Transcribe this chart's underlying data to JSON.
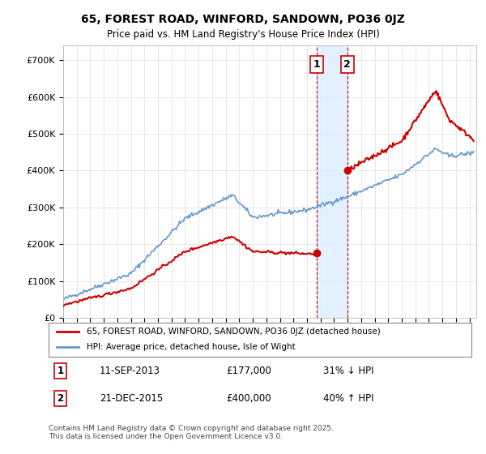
{
  "title": "65, FOREST ROAD, WINFORD, SANDOWN, PO36 0JZ",
  "subtitle": "Price paid vs. HM Land Registry's House Price Index (HPI)",
  "ylabel_ticks": [
    "£0",
    "£100K",
    "£200K",
    "£300K",
    "£400K",
    "£500K",
    "£600K",
    "£700K"
  ],
  "ytick_vals": [
    0,
    100000,
    200000,
    300000,
    400000,
    500000,
    600000,
    700000
  ],
  "ylim": [
    0,
    740000
  ],
  "xlim_start": 1995.0,
  "xlim_end": 2025.5,
  "sale1_date": 2013.7,
  "sale1_price": 177000,
  "sale2_date": 2015.97,
  "sale2_price": 400000,
  "hpi_color": "#6699cc",
  "price_color": "#cc0000",
  "shade_color": "#ddeeff",
  "annotation_box_color": "#cc0000",
  "legend_label_price": "65, FOREST ROAD, WINFORD, SANDOWN, PO36 0JZ (detached house)",
  "legend_label_hpi": "HPI: Average price, detached house, Isle of Wight",
  "table_row1": [
    "1",
    "11-SEP-2013",
    "£177,000",
    "31% ↓ HPI"
  ],
  "table_row2": [
    "2",
    "21-DEC-2015",
    "£400,000",
    "40% ↑ HPI"
  ],
  "footnote": "Contains HM Land Registry data © Crown copyright and database right 2025.\nThis data is licensed under the Open Government Licence v3.0.",
  "background_color": "#ffffff",
  "grid_color": "#dddddd"
}
